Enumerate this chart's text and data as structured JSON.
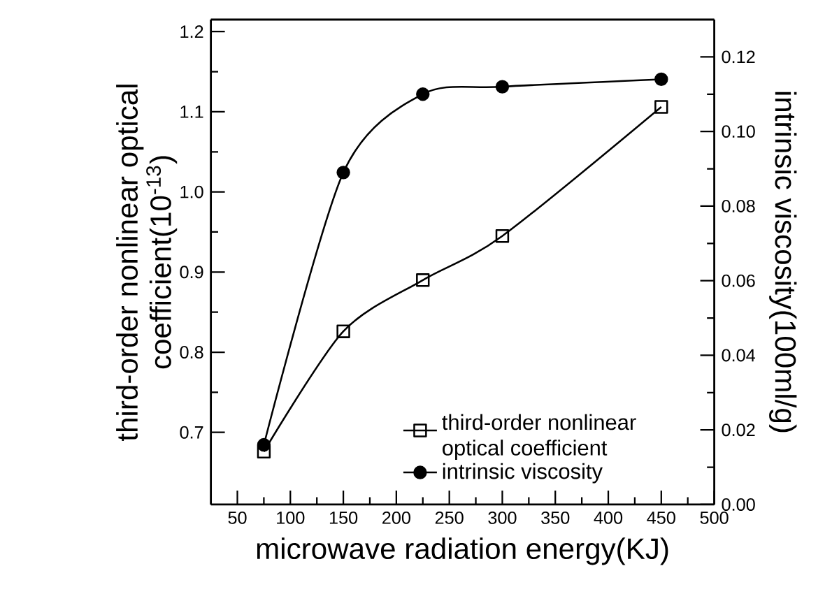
{
  "chart_data": {
    "type": "line",
    "xlabel": "microwave radiation energy(KJ)",
    "ylabel": "third-order nonlinear optical coefficient(10$^{-13}$)",
    "y2label": "intrinsic viscosity(100ml/g)",
    "x": [
      75,
      150,
      225,
      300,
      450
    ],
    "series": [
      {
        "name": "third-order nonlinear optical coefficient",
        "color": "#000000",
        "marker": "square",
        "values": [
          0.676,
          0.826,
          0.89,
          0.945,
          1.106
        ]
      },
      {
        "name": "intrinsic viscosity",
        "color": "#000000",
        "marker": "circle",
        "axis": "y2",
        "values": [
          0.016,
          0.089,
          0.11,
          0.112,
          0.114
        ]
      }
    ],
    "xlim": [
      25,
      500
    ],
    "xticks": [
      50,
      100,
      150,
      200,
      250,
      300,
      350,
      400,
      450,
      500
    ],
    "ylim": [
      0.61,
      1.215
    ],
    "yticks": [
      {
        "value": 0.7,
        "label": "0.7"
      },
      {
        "value": 0.8,
        "label": "0.8"
      },
      {
        "value": 0.9,
        "label": "0.9"
      },
      {
        "value": 1.0,
        "label": "1.0"
      },
      {
        "value": 1.1,
        "label": "1.1"
      },
      {
        "value": 1.2,
        "label": "1.2"
      }
    ],
    "y2lim": [
      0,
      0.13
    ],
    "y2ticks": [
      {
        "value": 0,
        "label": "0.00"
      },
      {
        "value": 0.02,
        "label": "0.02"
      },
      {
        "value": 0.04,
        "label": "0.04"
      },
      {
        "value": 0.06,
        "label": "0.06"
      },
      {
        "value": 0.08,
        "label": "0.08"
      },
      {
        "value": 0.1,
        "label": "0.10"
      },
      {
        "value": 0.12,
        "label": "0.12"
      }
    ],
    "grid": false,
    "legend": "bottom right",
    "line_style": "solid"
  }
}
